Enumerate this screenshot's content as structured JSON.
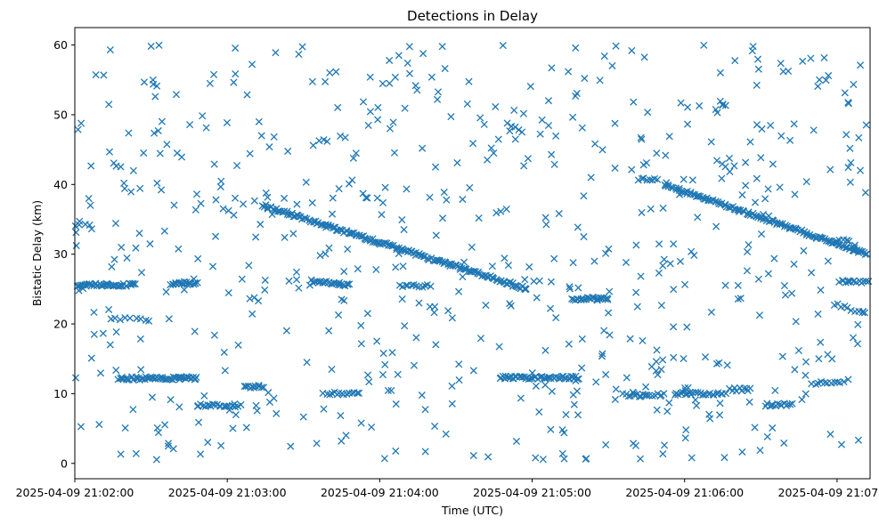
{
  "chart_data": {
    "type": "scatter",
    "title": "Detections in Delay",
    "xlabel": "Time (UTC)",
    "ylabel": "Bistatic Delay (km)",
    "marker": "x",
    "color": "#1f77b4",
    "x_unit": "seconds since 2025-04-09 21:02:00",
    "xlim": [
      0,
      313
    ],
    "ylim": [
      -2.2,
      62.5
    ],
    "x_ticks": [
      {
        "value": 0,
        "label": "2025-04-09 21:02:00"
      },
      {
        "value": 60,
        "label": "2025-04-09 21:03:00"
      },
      {
        "value": 120,
        "label": "2025-04-09 21:04:00"
      },
      {
        "value": 180,
        "label": "2025-04-09 21:05:00"
      },
      {
        "value": 240,
        "label": "2025-04-09 21:06:00"
      },
      {
        "value": 300,
        "label": "2025-04-09 21:07:00"
      }
    ],
    "y_ticks": [
      {
        "value": 0,
        "label": "0"
      },
      {
        "value": 10,
        "label": "10"
      },
      {
        "value": 20,
        "label": "20"
      },
      {
        "value": 30,
        "label": "30"
      },
      {
        "value": 40,
        "label": "40"
      },
      {
        "value": 50,
        "label": "50"
      },
      {
        "value": 60,
        "label": "60"
      }
    ],
    "series": [
      {
        "name": "detections",
        "tracks": [
          {
            "x0": 74,
            "y0": 37.0,
            "x1": 178,
            "y1": 25.0,
            "n": 180
          },
          {
            "x0": 232,
            "y0": 40.0,
            "x1": 312,
            "y1": 30.0,
            "n": 130
          },
          {
            "x0": 17,
            "y0": 12.2,
            "x1": 48,
            "y1": 12.2,
            "n": 55
          },
          {
            "x0": 168,
            "y0": 12.3,
            "x1": 198,
            "y1": 12.3,
            "n": 50
          },
          {
            "x0": 13,
            "y0": 25.6,
            "x1": 24,
            "y1": 25.6,
            "n": 20
          },
          {
            "x0": 38,
            "y0": 25.8,
            "x1": 48,
            "y1": 25.9,
            "n": 20
          },
          {
            "x0": 1,
            "y0": 25.6,
            "x1": 13,
            "y1": 25.6,
            "n": 22
          },
          {
            "x0": 196,
            "y0": 23.6,
            "x1": 210,
            "y1": 23.6,
            "n": 25
          },
          {
            "x0": 48,
            "y0": 8.3,
            "x1": 65,
            "y1": 8.3,
            "n": 22
          },
          {
            "x0": 67,
            "y0": 11.0,
            "x1": 74,
            "y1": 11.0,
            "n": 12
          },
          {
            "x0": 93,
            "y0": 26.1,
            "x1": 108,
            "y1": 25.6,
            "n": 25
          },
          {
            "x0": 236,
            "y0": 10.0,
            "x1": 256,
            "y1": 10.0,
            "n": 25
          },
          {
            "x0": 216,
            "y0": 9.8,
            "x1": 232,
            "y1": 9.8,
            "n": 18
          },
          {
            "x0": 98,
            "y0": 10.0,
            "x1": 112,
            "y1": 10.0,
            "n": 15
          },
          {
            "x0": 272,
            "y0": 8.4,
            "x1": 282,
            "y1": 8.4,
            "n": 14
          },
          {
            "x0": 301,
            "y0": 26.0,
            "x1": 312,
            "y1": 26.0,
            "n": 14
          },
          {
            "x0": 299,
            "y0": 22.8,
            "x1": 311,
            "y1": 21.6,
            "n": 10
          },
          {
            "x0": 290,
            "y0": 11.4,
            "x1": 304,
            "y1": 11.9,
            "n": 12
          },
          {
            "x0": 258,
            "y0": 10.6,
            "x1": 266,
            "y1": 10.6,
            "n": 10
          },
          {
            "x0": 222,
            "y0": 40.8,
            "x1": 229,
            "y1": 40.8,
            "n": 8
          },
          {
            "x0": 128,
            "y0": 25.5,
            "x1": 140,
            "y1": 25.4,
            "n": 12
          },
          {
            "x0": 14,
            "y0": 20.7,
            "x1": 28,
            "y1": 20.7,
            "n": 8
          },
          {
            "x0": 300,
            "y0": 32.0,
            "x1": 305,
            "y1": 32.0,
            "n": 5
          },
          {
            "x0": 254,
            "y0": 51.8,
            "x1": 256,
            "y1": 51.3,
            "n": 4
          },
          {
            "x0": 170,
            "y0": 48.6,
            "x1": 176,
            "y1": 47.7,
            "n": 5
          },
          {
            "x0": 0,
            "y0": 34.2,
            "x1": 6,
            "y1": 34.2,
            "n": 4
          },
          {
            "x0": 15,
            "y0": 43.0,
            "x1": 18,
            "y1": 42.6,
            "n": 3
          },
          {
            "x0": 253,
            "y0": 43.4,
            "x1": 258,
            "y1": 41.8,
            "n": 4
          }
        ],
        "clutter": {
          "count": 620,
          "x_range": [
            0,
            312
          ],
          "y_range": [
            0.5,
            60
          ],
          "seed": 20250409
        }
      }
    ]
  }
}
